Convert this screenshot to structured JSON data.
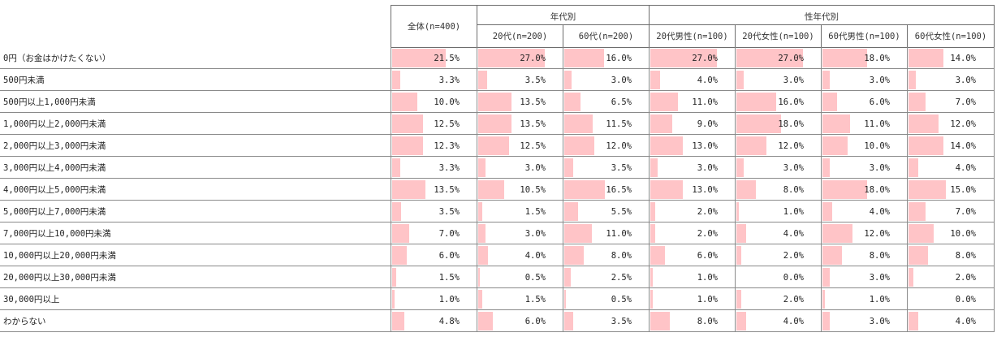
{
  "chart_data": {
    "type": "table",
    "groups": [
      {
        "label": "",
        "span": 1
      },
      {
        "label": "年代別",
        "span": 2
      },
      {
        "label": "性年代別",
        "span": 4
      }
    ],
    "columns": [
      "全体(n=400)",
      "20代(n=200)",
      "60代(n=200)",
      "20代男性(n=100)",
      "20代女性(n=100)",
      "60代男性(n=100)",
      "60代女性(n=100)"
    ],
    "bar_color": "#ffc4c7",
    "rows": [
      {
        "label": "0円（お金はかけたくない）",
        "values": [
          "21.5%",
          "27.0%",
          "16.0%",
          "27.0%",
          "27.0%",
          "18.0%",
          "14.0%"
        ]
      },
      {
        "label": "500円未満",
        "values": [
          "3.3%",
          "3.5%",
          "3.0%",
          "4.0%",
          "3.0%",
          "3.0%",
          "3.0%"
        ]
      },
      {
        "label": "500円以上1,000円未満",
        "values": [
          "10.0%",
          "13.5%",
          "6.5%",
          "11.0%",
          "16.0%",
          "6.0%",
          "7.0%"
        ]
      },
      {
        "label": "1,000円以上2,000円未満",
        "values": [
          "12.5%",
          "13.5%",
          "11.5%",
          "9.0%",
          "18.0%",
          "11.0%",
          "12.0%"
        ]
      },
      {
        "label": "2,000円以上3,000円未満",
        "values": [
          "12.3%",
          "12.5%",
          "12.0%",
          "13.0%",
          "12.0%",
          "10.0%",
          "14.0%"
        ]
      },
      {
        "label": "3,000円以上4,000円未満",
        "values": [
          "3.3%",
          "3.0%",
          "3.5%",
          "3.0%",
          "3.0%",
          "3.0%",
          "4.0%"
        ]
      },
      {
        "label": "4,000円以上5,000円未満",
        "values": [
          "13.5%",
          "10.5%",
          "16.5%",
          "13.0%",
          "8.0%",
          "18.0%",
          "15.0%"
        ]
      },
      {
        "label": "5,000円以上7,000円未満",
        "values": [
          "3.5%",
          "1.5%",
          "5.5%",
          "2.0%",
          "1.0%",
          "4.0%",
          "7.0%"
        ]
      },
      {
        "label": "7,000円以上10,000円未満",
        "values": [
          "7.0%",
          "3.0%",
          "11.0%",
          "2.0%",
          "4.0%",
          "12.0%",
          "10.0%"
        ]
      },
      {
        "label": "10,000円以上20,000円未満",
        "values": [
          "6.0%",
          "4.0%",
          "8.0%",
          "6.0%",
          "2.0%",
          "8.0%",
          "8.0%"
        ]
      },
      {
        "label": "20,000円以上30,000円未満",
        "values": [
          "1.5%",
          "0.5%",
          "2.5%",
          "1.0%",
          "0.0%",
          "3.0%",
          "2.0%"
        ]
      },
      {
        "label": "30,000円以上",
        "values": [
          "1.0%",
          "1.5%",
          "0.5%",
          "1.0%",
          "2.0%",
          "1.0%",
          "0.0%"
        ]
      },
      {
        "label": "わからない",
        "values": [
          "4.8%",
          "6.0%",
          "3.5%",
          "8.0%",
          "4.0%",
          "3.0%",
          "4.0%"
        ]
      }
    ]
  }
}
